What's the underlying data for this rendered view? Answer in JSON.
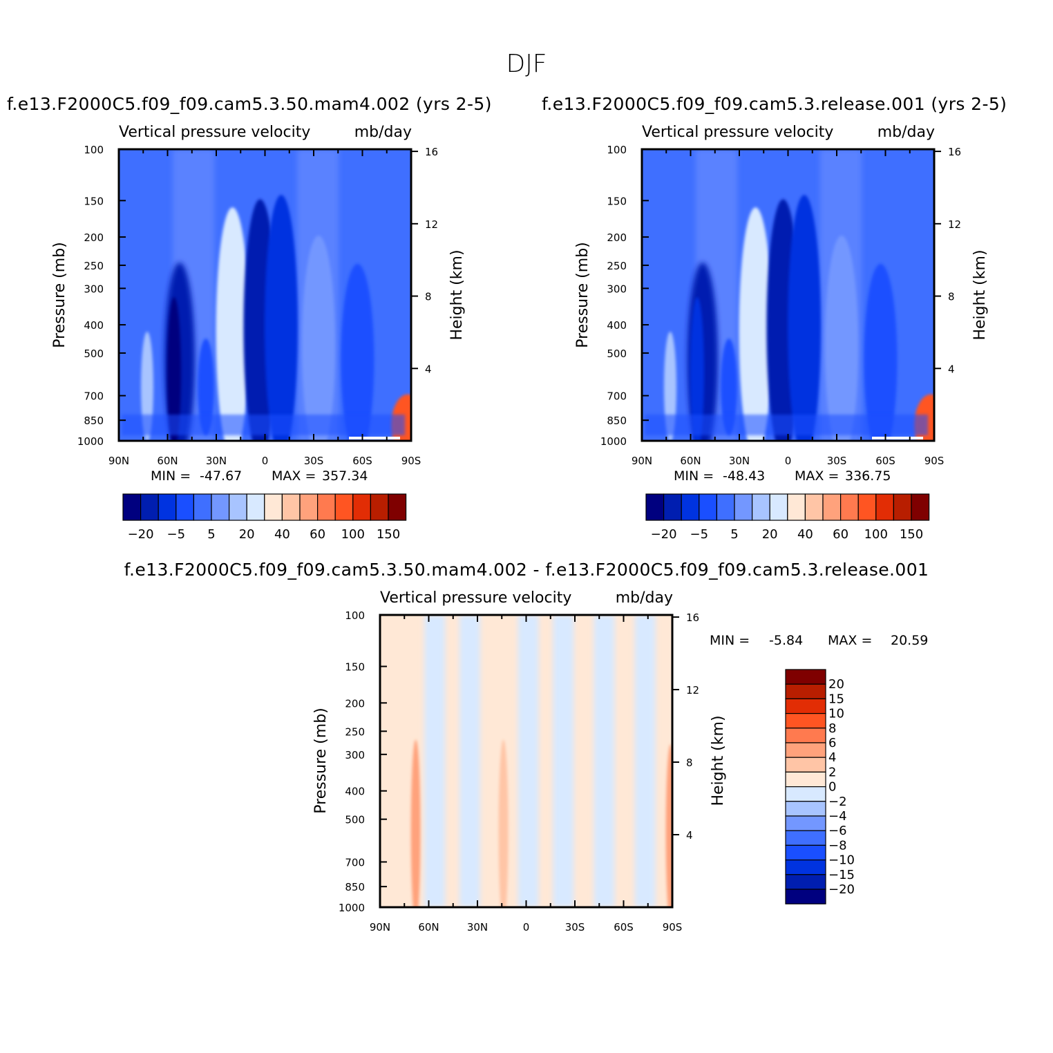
{
  "figure": {
    "title": "DJF"
  },
  "colors": {
    "blues": [
      "#00007f",
      "#001eb0",
      "#0033e0",
      "#1a4fff",
      "#3f6fff",
      "#7397ff",
      "#a8c4ff",
      "#d8e9ff"
    ],
    "reds": [
      "#ffe8d6",
      "#ffc5a6",
      "#ffa27c",
      "#ff7a4f",
      "#ff5522",
      "#e22d05",
      "#b81e00",
      "#7f0000"
    ]
  },
  "chart_data": [
    {
      "type": "heatmap",
      "panel": "left",
      "run_title": "f.e13.F2000C5.f09_f09.cam5.3.50.mam4.002 (yrs 2-5)",
      "variable_label": "Vertical pressure velocity",
      "units_label": "mb/day",
      "ylabel": "Pressure (mb)",
      "y2label": "Height (km)",
      "xticks": [
        "90N",
        "60N",
        "30N",
        "0",
        "30S",
        "60S",
        "90S"
      ],
      "yticks": [
        "100",
        "150",
        "200",
        "250",
        "300",
        "400",
        "500",
        "700",
        "850",
        "1000"
      ],
      "y2ticks": [
        "16",
        "12",
        "8",
        "4"
      ],
      "x_range": [
        "90N",
        "90S"
      ],
      "ylim": [
        1000,
        100
      ],
      "y_scale": "log",
      "min_label": "MIN =",
      "min_value": "-47.67",
      "max_label": "MAX =",
      "max_value": "357.34",
      "legend_labels": [
        "-20",
        "-5",
        "5",
        "20",
        "40",
        "60",
        "100",
        "150"
      ],
      "legend_placement": "bottom",
      "features": [
        {
          "lat": 20,
          "p_top": 160,
          "level": 7
        },
        {
          "lat": 3,
          "p_top": 150,
          "level": 1
        },
        {
          "lat": -10,
          "p_top": 145,
          "level": 2
        },
        {
          "lat": -33,
          "p_top": 200,
          "level": 5
        },
        {
          "lat": -57,
          "p_top": 250,
          "level": 3
        },
        {
          "lat": -88,
          "p_top": 700,
          "level": 12
        }
      ]
    },
    {
      "type": "heatmap",
      "panel": "right",
      "run_title": "f.e13.F2000C5.f09_f09.cam5.3.release.001 (yrs 2-5)",
      "variable_label": "Vertical pressure velocity",
      "units_label": "mb/day",
      "ylabel": "Pressure (mb)",
      "y2label": "Height (km)",
      "xticks": [
        "90N",
        "60N",
        "30N",
        "0",
        "30S",
        "60S",
        "90S"
      ],
      "yticks": [
        "100",
        "150",
        "200",
        "250",
        "300",
        "400",
        "500",
        "700",
        "850",
        "1000"
      ],
      "y2ticks": [
        "16",
        "12",
        "8",
        "4"
      ],
      "x_range": [
        "90N",
        "90S"
      ],
      "ylim": [
        1000,
        100
      ],
      "y_scale": "log",
      "min_label": "MIN =",
      "min_value": "-48.43",
      "max_label": "MAX =",
      "max_value": "336.75",
      "legend_labels": [
        "-20",
        "-5",
        "5",
        "20",
        "40",
        "60",
        "100",
        "150"
      ],
      "legend_placement": "bottom",
      "features": [
        {
          "lat": 20,
          "p_top": 160,
          "level": 7
        },
        {
          "lat": 3,
          "p_top": 150,
          "level": 1
        },
        {
          "lat": -10,
          "p_top": 145,
          "level": 2
        },
        {
          "lat": -33,
          "p_top": 200,
          "level": 5
        },
        {
          "lat": -57,
          "p_top": 250,
          "level": 3
        },
        {
          "lat": -88,
          "p_top": 700,
          "level": 12
        }
      ]
    },
    {
      "type": "heatmap",
      "panel": "difference",
      "run_title": "f.e13.F2000C5.f09_f09.cam5.3.50.mam4.002 - f.e13.F2000C5.f09_f09.cam5.3.release.001",
      "variable_label": "Vertical pressure velocity",
      "units_label": "mb/day",
      "ylabel": "Pressure (mb)",
      "y2label": "Height (km)",
      "xticks": [
        "90N",
        "60N",
        "30N",
        "0",
        "30S",
        "60S",
        "90S"
      ],
      "yticks": [
        "100",
        "150",
        "200",
        "250",
        "300",
        "400",
        "500",
        "700",
        "850",
        "1000"
      ],
      "y2ticks": [
        "16",
        "12",
        "8",
        "4"
      ],
      "x_range": [
        "90N",
        "90S"
      ],
      "ylim": [
        1000,
        100
      ],
      "y_scale": "log",
      "min_label": "MIN =",
      "min_value": "-5.84",
      "max_label": "MAX =",
      "max_value": "20.59",
      "legend_labels": [
        "20",
        "15",
        "10",
        "8",
        "6",
        "4",
        "2",
        "0",
        "-2",
        "-4",
        "-6",
        "-8",
        "-10",
        "-15",
        "-20"
      ],
      "legend_placement": "right",
      "features": [
        {
          "lat": 68,
          "p_top": 270,
          "level": 10
        },
        {
          "lat": 14,
          "p_top": 270,
          "level": 9
        },
        {
          "lat": -89,
          "p_top": 280,
          "level": 10
        }
      ]
    }
  ]
}
